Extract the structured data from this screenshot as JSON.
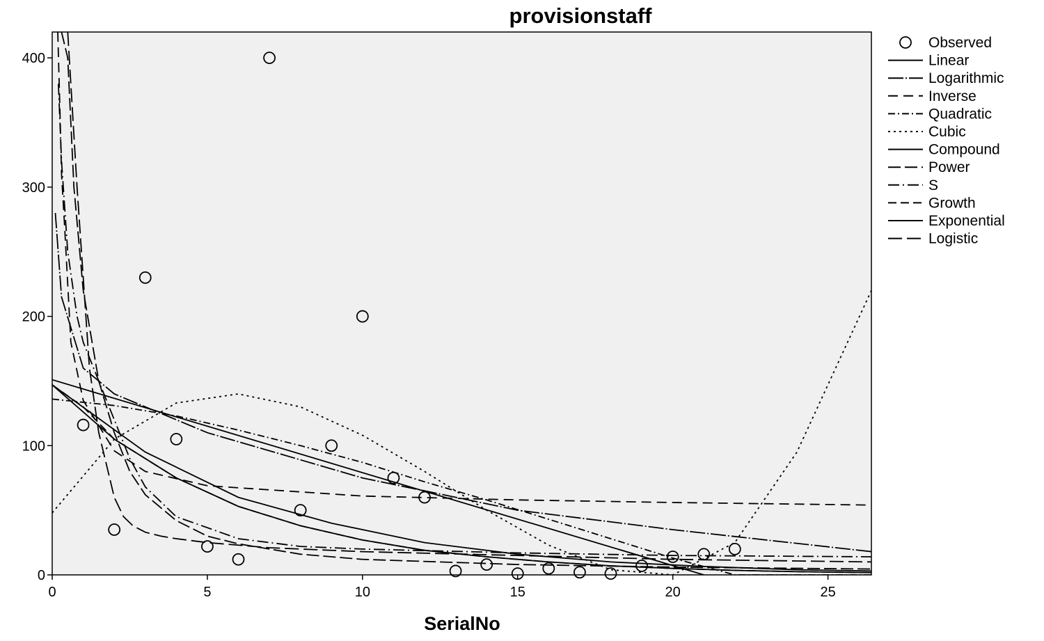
{
  "chart_data": {
    "type": "scatter",
    "title": "provisionstaff",
    "xlabel": "SerialNo",
    "ylabel": "",
    "xlim": [
      0,
      26.4
    ],
    "ylim": [
      0,
      420
    ],
    "x_ticks": [
      0,
      5,
      10,
      15,
      20,
      25
    ],
    "y_ticks": [
      0,
      100,
      200,
      300,
      400
    ],
    "legend_position": "right",
    "colors": {
      "plot_bg": "#f0f0f0",
      "line": "#000000"
    },
    "observed": {
      "name": "Observed",
      "points": [
        {
          "x": 1,
          "y": 116
        },
        {
          "x": 2,
          "y": 35
        },
        {
          "x": 3,
          "y": 230
        },
        {
          "x": 4,
          "y": 105
        },
        {
          "x": 5,
          "y": 22
        },
        {
          "x": 6,
          "y": 12
        },
        {
          "x": 7,
          "y": 400
        },
        {
          "x": 8,
          "y": 50
        },
        {
          "x": 9,
          "y": 100
        },
        {
          "x": 10,
          "y": 200
        },
        {
          "x": 11,
          "y": 75
        },
        {
          "x": 12,
          "y": 60
        },
        {
          "x": 13,
          "y": 3
        },
        {
          "x": 14,
          "y": 8
        },
        {
          "x": 15,
          "y": 1
        },
        {
          "x": 16,
          "y": 5
        },
        {
          "x": 17,
          "y": 2
        },
        {
          "x": 18,
          "y": 1
        },
        {
          "x": 19,
          "y": 7
        },
        {
          "x": 20,
          "y": 14
        },
        {
          "x": 21,
          "y": 16
        },
        {
          "x": 22,
          "y": 20
        }
      ]
    },
    "series": [
      {
        "name": "Linear",
        "dash": "",
        "x": [
          0,
          21
        ],
        "y": [
          151,
          0
        ]
      },
      {
        "name": "Logarithmic",
        "dash": "22,3,2,3",
        "x": [
          0.1,
          0.3,
          1,
          2,
          5,
          10,
          15,
          20,
          26.4
        ],
        "y": [
          280,
          215,
          160,
          140,
          110,
          75,
          50,
          35,
          18
        ]
      },
      {
        "name": "Inverse",
        "dash": "14,8",
        "x": [
          0.18,
          0.25,
          0.3,
          0.4,
          0.6,
          1,
          2,
          3,
          5,
          10,
          15,
          20,
          26.4
        ],
        "y": [
          420,
          360,
          310,
          270,
          180,
          135,
          96,
          80,
          69,
          61,
          58,
          56,
          54
        ]
      },
      {
        "name": "Quadratic",
        "dash": "10,4,2,4",
        "x": [
          0,
          2,
          4,
          6,
          8,
          10,
          12,
          14,
          16,
          18,
          20,
          22,
          24,
          26.4
        ],
        "y": [
          136,
          131,
          123,
          112,
          100,
          87,
          72,
          58,
          43,
          28,
          13,
          0,
          0,
          0
        ]
      },
      {
        "name": "Cubic",
        "dash": "3,5",
        "x": [
          0,
          2,
          4,
          6,
          8,
          10,
          12,
          14,
          16,
          18,
          20,
          22,
          24,
          26.4
        ],
        "y": [
          48,
          105,
          133,
          140,
          130,
          108,
          80,
          50,
          23,
          4,
          0,
          25,
          95,
          220
        ]
      },
      {
        "name": "Compound",
        "dash": "",
        "x": [
          0,
          2,
          4,
          6,
          8,
          10,
          12,
          14,
          16,
          18,
          20,
          22,
          24,
          26.4
        ],
        "y": [
          147,
          105,
          75,
          53,
          38,
          27,
          19,
          14,
          10,
          7,
          5,
          3.5,
          2.5,
          1.8
        ]
      },
      {
        "name": "Power",
        "dash": "18,6",
        "x": [
          0.3,
          0.5,
          0.7,
          1,
          1.5,
          2,
          2.5,
          3,
          4,
          5,
          6,
          8,
          10,
          15,
          20,
          26.4
        ],
        "y": [
          420,
          400,
          300,
          220,
          150,
          110,
          80,
          62,
          42,
          30,
          24,
          16,
          12,
          8,
          6,
          4.5
        ]
      },
      {
        "name": "S",
        "dash": "16,5,2,5",
        "x": [
          0.2,
          0.3,
          0.5,
          0.8,
          1,
          1.5,
          2,
          2.5,
          3,
          4,
          6,
          8,
          10,
          15,
          20,
          26.4
        ],
        "y": [
          380,
          320,
          250,
          200,
          180,
          150,
          120,
          90,
          68,
          45,
          28,
          22,
          20,
          17,
          15,
          14
        ]
      },
      {
        "name": "Growth",
        "dash": "12,6",
        "x": [
          0,
          1,
          2,
          3,
          4,
          6,
          8,
          10,
          12,
          14,
          16,
          18,
          20,
          22,
          24,
          26.4
        ],
        "y": [
          147,
          130,
          105,
          90,
          75,
          53,
          38,
          27,
          19,
          14,
          10,
          7,
          5,
          3.5,
          2.5,
          1.8
        ]
      },
      {
        "name": "Exponential",
        "dash": "",
        "x": [
          0,
          3,
          6,
          9,
          12,
          15,
          18,
          21,
          24,
          26.4
        ],
        "y": [
          147,
          95,
          60,
          40,
          25,
          16,
          10,
          6.5,
          4,
          3
        ]
      },
      {
        "name": "Logistic",
        "dash": "20,7",
        "x": [
          0.5,
          0.8,
          1,
          1.2,
          1.5,
          1.8,
          2,
          2.3,
          2.6,
          3,
          3.5,
          4,
          5,
          7,
          10,
          15,
          20,
          26.4
        ],
        "y": [
          420,
          300,
          230,
          160,
          110,
          80,
          60,
          45,
          38,
          33,
          30,
          28,
          25,
          21,
          18,
          15,
          12,
          10
        ]
      }
    ]
  }
}
